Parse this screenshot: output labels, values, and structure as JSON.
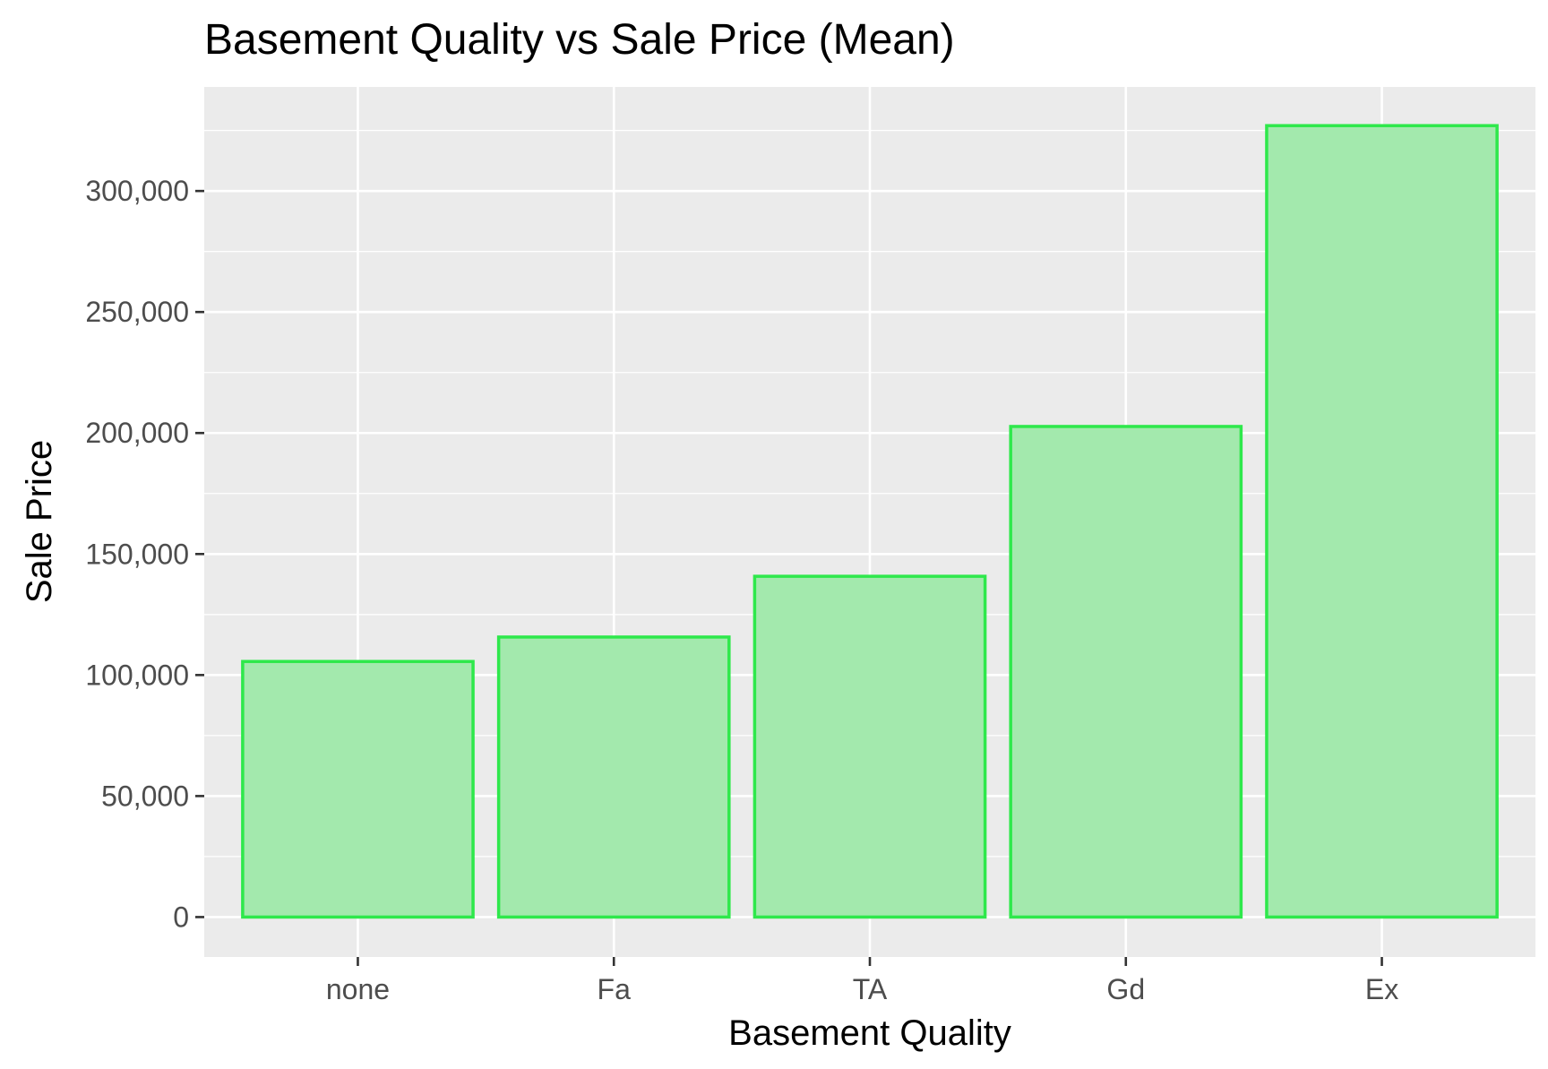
{
  "chart_data": {
    "type": "bar",
    "title": "Basement Quality vs Sale Price (Mean)",
    "xlabel": "Basement Quality",
    "ylabel": "Sale Price",
    "categories": [
      "none",
      "Fa",
      "TA",
      "Gd",
      "Ex"
    ],
    "values": [
      105600,
      115700,
      140800,
      202700,
      327000
    ],
    "ylim": [
      -16500,
      343000
    ],
    "yticks": [
      0,
      50000,
      100000,
      150000,
      200000,
      250000,
      300000
    ],
    "ytick_labels": [
      "0",
      "50,000",
      "100,000",
      "150,000",
      "200,000",
      "250,000",
      "300,000"
    ],
    "grid": true,
    "legend": "none",
    "colors": {
      "bar_fill": "#a3e9ad",
      "bar_stroke": "#2ee84b",
      "panel_background": "#ebebeb",
      "grid": "#ffffff",
      "tick_text": "#4d4d4d",
      "tick_mark": "#333333"
    }
  }
}
